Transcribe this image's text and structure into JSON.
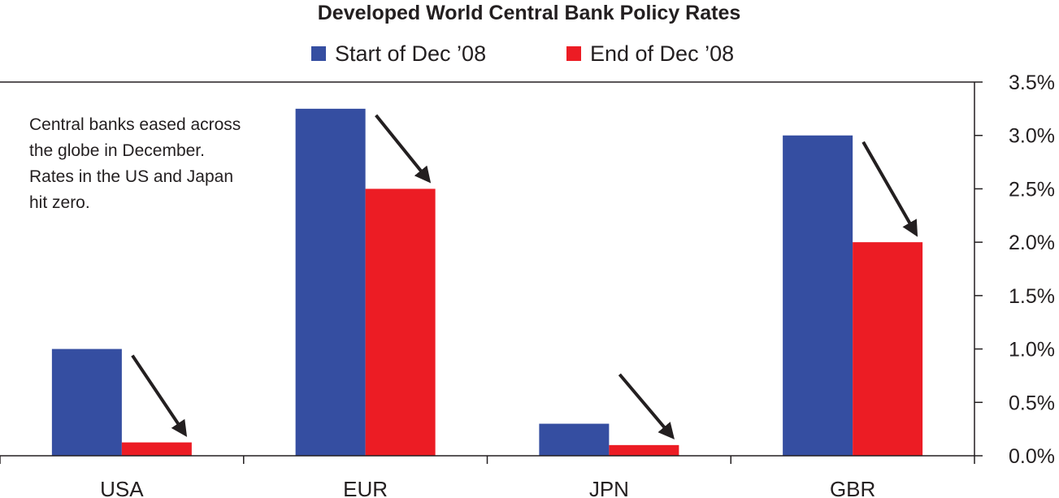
{
  "chart_data": {
    "type": "bar",
    "title": "Developed World Central Bank Policy Rates",
    "categories": [
      "USA",
      "EUR",
      "JPN",
      "GBR"
    ],
    "series": [
      {
        "name": "Start of Dec ’08",
        "values": [
          1.0,
          3.25,
          0.3,
          3.0
        ]
      },
      {
        "name": "End of Dec ’08",
        "values": [
          0.125,
          2.5,
          0.1,
          2.0
        ]
      }
    ],
    "ylim": [
      0,
      3.5
    ],
    "y_ticks": [
      "0.0%",
      "0.5%",
      "1.0%",
      "1.5%",
      "2.0%",
      "2.5%",
      "3.0%",
      "3.5%"
    ],
    "y_axis_side": "right",
    "legend_position": "top-center",
    "grid": false,
    "annotation_lines": [
      "Central banks eased across",
      "the globe in December.",
      "Rates in the US and Japan",
      "hit zero."
    ],
    "annotation_arrows": "down-right arrow next to each category's pair of bars"
  },
  "colors": {
    "start_series": "#354ea1",
    "end_series": "#ec1c24",
    "axis": "#231f20",
    "arrow": "#231f20"
  }
}
